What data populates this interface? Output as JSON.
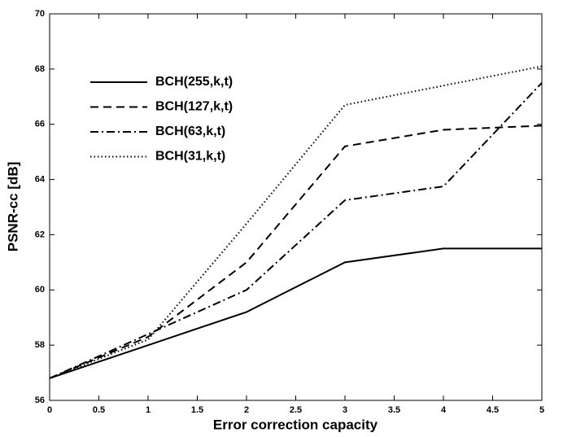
{
  "chart_data": {
    "type": "line",
    "xlabel": "Error correction capacity",
    "ylabel": "PSNR-cc [dB]",
    "x": [
      0,
      1,
      2,
      3,
      4,
      5
    ],
    "series": [
      {
        "name": "BCH(255,k,t)",
        "color": "#000000",
        "style": "solid",
        "values": [
          56.8,
          58.0,
          59.2,
          61.0,
          61.5,
          61.5
        ]
      },
      {
        "name": "BCH(127,k,t)",
        "color": "#000000",
        "style": "dashed",
        "values": [
          56.8,
          58.3,
          61.0,
          65.2,
          65.8,
          65.95
        ]
      },
      {
        "name": "BCH(63,k,t)",
        "color": "#000000",
        "style": "dashdot",
        "values": [
          56.8,
          58.4,
          60.0,
          63.25,
          63.75,
          67.5
        ]
      },
      {
        "name": "BCH(31,k,t)",
        "color": "#000000",
        "style": "dotted",
        "values": [
          56.8,
          58.2,
          62.4,
          66.7,
          67.4,
          68.1
        ]
      }
    ],
    "xlim": [
      0,
      5
    ],
    "xticks": [
      0,
      0.5,
      1,
      1.5,
      2,
      2.5,
      3,
      3.5,
      4,
      4.5,
      5
    ],
    "ylim": [
      56,
      70
    ],
    "yticks": [
      56,
      58,
      60,
      62,
      64,
      66,
      68,
      70
    ],
    "legend": "upper-left",
    "grid": false
  }
}
